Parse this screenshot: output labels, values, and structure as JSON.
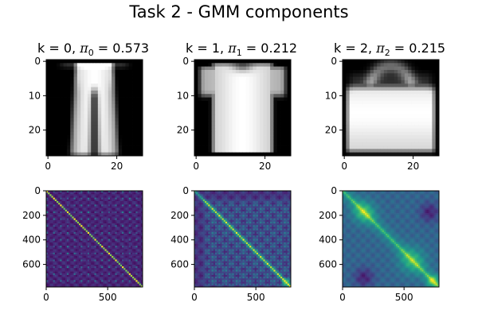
{
  "figure": {
    "title": "Task 2 - GMM components"
  },
  "chart_data": [
    {
      "type": "heatmap",
      "title": "k = 0, π0 = 0.573",
      "title_parts": {
        "k": "0",
        "pi_symbol": "π",
        "pi_index": "0",
        "pi_value": "0.573"
      },
      "colormap": "gray",
      "image_size": [
        28,
        28
      ],
      "xlim": [
        0,
        27
      ],
      "ylim": [
        27,
        0
      ],
      "xticks": [
        0,
        20
      ],
      "yticks": [
        0,
        10,
        20
      ],
      "depicts": "mean image of trousers"
    },
    {
      "type": "heatmap",
      "title": "k = 1, π1 = 0.212",
      "title_parts": {
        "k": "1",
        "pi_symbol": "π",
        "pi_index": "1",
        "pi_value": "0.212"
      },
      "colormap": "gray",
      "image_size": [
        28,
        28
      ],
      "xlim": [
        0,
        27
      ],
      "ylim": [
        27,
        0
      ],
      "xticks": [
        0,
        20
      ],
      "yticks": [
        0,
        10,
        20
      ],
      "depicts": "mean image of t-shirt"
    },
    {
      "type": "heatmap",
      "title": "k = 2, π2 = 0.215",
      "title_parts": {
        "k": "2",
        "pi_symbol": "π",
        "pi_index": "2",
        "pi_value": "0.215"
      },
      "colormap": "gray",
      "image_size": [
        28,
        28
      ],
      "xlim": [
        0,
        27
      ],
      "ylim": [
        27,
        0
      ],
      "xticks": [
        0,
        20
      ],
      "yticks": [
        0,
        10,
        20
      ],
      "depicts": "mean image of bag"
    },
    {
      "type": "heatmap",
      "title": "",
      "colormap": "viridis",
      "matrix_size": [
        784,
        784
      ],
      "xlim": [
        0,
        784
      ],
      "ylim": [
        784,
        0
      ],
      "xticks": [
        0,
        500
      ],
      "yticks": [
        0,
        200,
        400,
        600
      ],
      "depicts": "covariance matrix of component 0"
    },
    {
      "type": "heatmap",
      "title": "",
      "colormap": "viridis",
      "matrix_size": [
        784,
        784
      ],
      "xlim": [
        0,
        784
      ],
      "ylim": [
        784,
        0
      ],
      "xticks": [
        0,
        500
      ],
      "yticks": [
        0,
        200,
        400,
        600
      ],
      "depicts": "covariance matrix of component 1"
    },
    {
      "type": "heatmap",
      "title": "",
      "colormap": "viridis",
      "matrix_size": [
        784,
        784
      ],
      "xlim": [
        0,
        784
      ],
      "ylim": [
        784,
        0
      ],
      "xticks": [
        0,
        500
      ],
      "yticks": [
        0,
        200,
        400,
        600
      ],
      "depicts": "covariance matrix of component 2"
    }
  ]
}
